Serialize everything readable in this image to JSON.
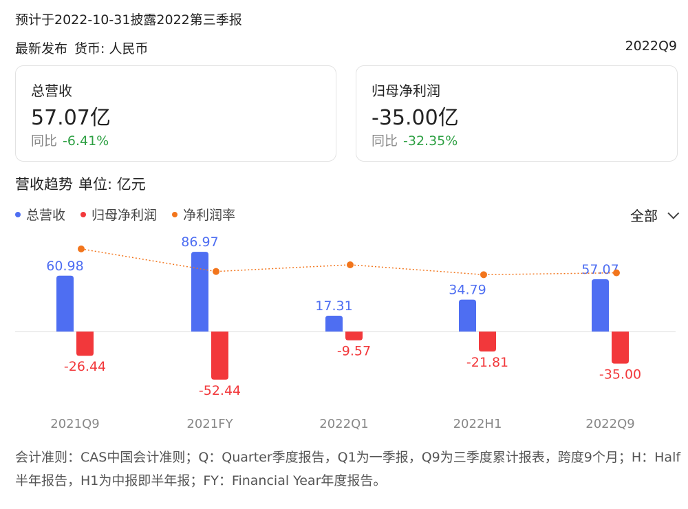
{
  "header": {
    "notice": "预计于2022-10-31披露2022第三季报",
    "latest": "最新发布",
    "currency": "货币: 人民币",
    "period": "2022Q9"
  },
  "cards": [
    {
      "label": "总营收",
      "value": "57.07亿",
      "yoy_label": "同比",
      "yoy_value": "-6.41%"
    },
    {
      "label": "归母净利润",
      "value": "-35.00亿",
      "yoy_label": "同比",
      "yoy_value": "-32.35%"
    }
  ],
  "trend": {
    "title": "营收趋势",
    "unit": "单位: 亿元",
    "filter_label": "全部"
  },
  "colors": {
    "revenue": "#4e6ef2",
    "profit": "#f2383b",
    "margin": "#f2751c",
    "yoy_text": "#2ea043"
  },
  "chart_data": {
    "type": "bar",
    "categories": [
      "2021Q9",
      "2021FY",
      "2022Q1",
      "2022H1",
      "2022Q9"
    ],
    "series": [
      {
        "name": "总营收",
        "type": "bar",
        "values": [
          60.98,
          86.97,
          17.31,
          34.79,
          57.07
        ]
      },
      {
        "name": "归母净利润",
        "type": "bar",
        "values": [
          -26.44,
          -52.44,
          -9.57,
          -21.81,
          -35.0
        ]
      },
      {
        "name": "净利润率",
        "type": "line",
        "values": [
          -43.4,
          -60.3,
          -55.3,
          -62.7,
          -61.3
        ]
      }
    ],
    "labels_revenue": [
      "60.98",
      "86.97",
      "17.31",
      "34.79",
      "57.07"
    ],
    "labels_profit": [
      "-26.44",
      "-52.44",
      "-9.57",
      "-21.81",
      "-35.00"
    ],
    "legend_placement": "top-left",
    "grid": false
  },
  "footnote": "会计准则：CAS中国会计准则；Q：Quarter季度报告，Q1为一季报，Q9为三季度累计报表，跨度9个月；H：Half半年报告，H1为中报即半年报；FY：Financial Year年度报告。"
}
